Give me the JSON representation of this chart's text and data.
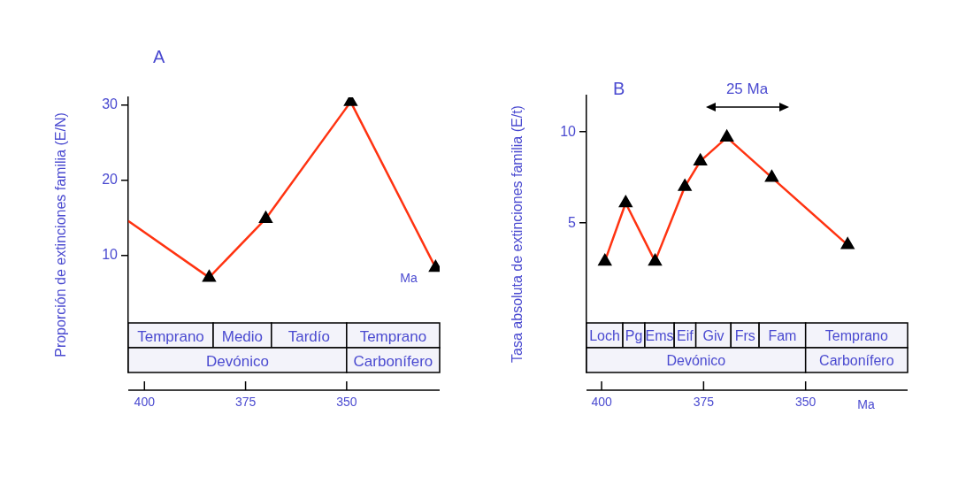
{
  "chart_data": [
    {
      "type": "line",
      "title": "A",
      "ylabel": "Proporción de extinciones familia (E/N)",
      "x": [
        404,
        384,
        370,
        349,
        328
      ],
      "series": [
        {
          "color": "#ff3311",
          "values": [
            14.6,
            7.1,
            14.9,
            30.4,
            8.4
          ]
        }
      ],
      "xlim": [
        404,
        327
      ],
      "xticks": [
        400,
        375,
        350
      ],
      "ylim": [
        -5.5,
        31
      ],
      "yticks": [
        10,
        20,
        30
      ],
      "grid": false,
      "legend": false,
      "marker": "triangle",
      "bands": [
        {
          "axis": "x",
          "from": 404,
          "to": 383,
          "label": "Temprano",
          "color": "#f3f3fa"
        },
        {
          "axis": "x",
          "from": 383,
          "to": 368.6,
          "label": "Medio",
          "color": "#f3f3fa"
        },
        {
          "axis": "x",
          "from": 368.6,
          "to": 350,
          "label": "Tardío",
          "color": "#f3f3fa"
        },
        {
          "axis": "x",
          "from": 350,
          "to": 327,
          "label": "Temprano",
          "color": "#f3f3fa"
        },
        {
          "axis": "x",
          "from": 404,
          "to": 350,
          "label": "Devónico",
          "color": "#f3f3fa"
        },
        {
          "axis": "x",
          "from": 350,
          "to": 327,
          "label": "Carbonífero",
          "color": "#f3f3fa"
        }
      ],
      "annotations": [
        "Ma"
      ]
    },
    {
      "type": "line",
      "title": "B",
      "ylabel": "Tasa absoluta de extinciones familia (E/t)",
      "xlabel": "Ma",
      "x": [
        399.2,
        394.1,
        386.9,
        379.6,
        375.8,
        369.3,
        358.3,
        339.7
      ],
      "series": [
        {
          "color": "#ff3311",
          "values": [
            2.9,
            6.1,
            2.9,
            7.0,
            8.4,
            9.7,
            7.5,
            3.8
          ]
        }
      ],
      "xlim": [
        403.7,
        325
      ],
      "xticks": [
        400,
        375,
        350
      ],
      "ylim": [
        -3.2,
        12
      ],
      "yticks": [
        5,
        10
      ],
      "grid": false,
      "legend": false,
      "marker": "triangle",
      "bands": [
        {
          "axis": "x",
          "from": 403.7,
          "to": 394.8,
          "label": "Loch",
          "color": "#f3f3fa"
        },
        {
          "axis": "x",
          "from": 394.8,
          "to": 389.4,
          "label": "Pg",
          "color": "#f3f3fa"
        },
        {
          "axis": "x",
          "from": 389.4,
          "to": 382.2,
          "label": "Ems",
          "color": "#f3f3fa"
        },
        {
          "axis": "x",
          "from": 382.2,
          "to": 376.9,
          "label": "Eif",
          "color": "#f3f3fa"
        },
        {
          "axis": "x",
          "from": 376.9,
          "to": 368.3,
          "label": "Giv",
          "color": "#f3f3fa"
        },
        {
          "axis": "x",
          "from": 368.3,
          "to": 361.4,
          "label": "Frs",
          "color": "#f3f3fa"
        },
        {
          "axis": "x",
          "from": 361.4,
          "to": 350,
          "label": "Fam",
          "color": "#f3f3fa"
        },
        {
          "axis": "x",
          "from": 350,
          "to": 325,
          "label": "Temprano",
          "color": "#f3f3fa"
        },
        {
          "axis": "x",
          "from": 403.7,
          "to": 350,
          "label": "Devónico",
          "color": "#f3f3fa"
        },
        {
          "axis": "x",
          "from": 350,
          "to": 325,
          "label": "Carbonífero",
          "color": "#f3f3fa"
        }
      ],
      "annotations": [
        "25 Ma"
      ]
    }
  ]
}
